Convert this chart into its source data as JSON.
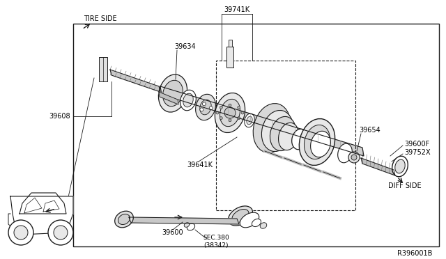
{
  "bg_color": "#ffffff",
  "line_color": "#1a1a1a",
  "title": "R396001B",
  "labels": {
    "tire_side": "TIRE SIDE",
    "diff_side": "DIFF SIDE",
    "p39608": "39608",
    "p39634": "39634",
    "p39741K": "39741K",
    "p39641K": "39641K",
    "p39654": "39654",
    "p39600F": "39600F",
    "p39752X": "39752X",
    "p39600": "39600",
    "sec": "SEC.380\n(38342)"
  }
}
